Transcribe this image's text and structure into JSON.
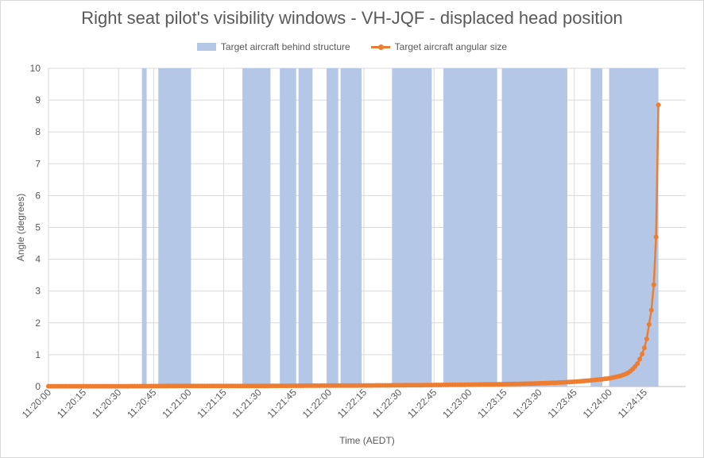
{
  "chart_data": {
    "type": "line",
    "title": "Right seat pilot's visibility windows - VH-JQF - displaced head position",
    "xlabel": "Time (AEDT)",
    "ylabel": "Angle (degrees)",
    "ylim": [
      0,
      10
    ],
    "y_ticks": [
      "0",
      "1",
      "2",
      "3",
      "4",
      "5",
      "6",
      "7",
      "8",
      "9",
      "10"
    ],
    "x_ticks": [
      "11:20:00",
      "11:20:15",
      "11:20:30",
      "11:20:45",
      "11:21:00",
      "11:21:15",
      "11:21:30",
      "11:21:45",
      "11:22:00",
      "11:22:15",
      "11:22:30",
      "11:22:45",
      "11:23:00",
      "11:23:15",
      "11:23:30",
      "11:23:45",
      "11:24:00",
      "11:24:15"
    ],
    "x_range": [
      "11:20:00",
      "11:24:20"
    ],
    "grid": "vertical and horizontal",
    "legend_position": "top",
    "series": [
      {
        "name": "Target aircraft behind structure",
        "kind": "area",
        "color": "#b4c7e7",
        "intervals": [
          [
            "11:20:40",
            "11:20:42"
          ],
          [
            "11:20:47",
            "11:21:01"
          ],
          [
            "11:21:23",
            "11:21:35"
          ],
          [
            "11:21:39",
            "11:21:46"
          ],
          [
            "11:21:47",
            "11:21:53"
          ],
          [
            "11:21:59",
            "11:22:04"
          ],
          [
            "11:22:05",
            "11:22:14"
          ],
          [
            "11:22:27",
            "11:22:44"
          ],
          [
            "11:22:49",
            "11:23:12"
          ],
          [
            "11:23:14",
            "11:23:42"
          ],
          [
            "11:23:52",
            "11:23:57"
          ],
          [
            "11:24:00",
            "11:24:21"
          ]
        ]
      },
      {
        "name": "Target aircraft angular size",
        "kind": "line",
        "color": "#ed7d31",
        "points": [
          [
            "11:20:00",
            0.01
          ],
          [
            "11:20:30",
            0.01
          ],
          [
            "11:21:00",
            0.02
          ],
          [
            "11:21:30",
            0.02
          ],
          [
            "11:22:00",
            0.03
          ],
          [
            "11:22:30",
            0.04
          ],
          [
            "11:23:00",
            0.06
          ],
          [
            "11:23:20",
            0.08
          ],
          [
            "11:23:40",
            0.13
          ],
          [
            "11:23:50",
            0.18
          ],
          [
            "11:24:00",
            0.26
          ],
          [
            "11:24:05",
            0.34
          ],
          [
            "11:24:08",
            0.43
          ],
          [
            "11:24:10",
            0.55
          ],
          [
            "11:24:12",
            0.72
          ],
          [
            "11:24:13",
            0.86
          ],
          [
            "11:24:14",
            1.02
          ],
          [
            "11:24:15",
            1.22
          ],
          [
            "11:24:16",
            1.5
          ],
          [
            "11:24:17",
            1.95
          ],
          [
            "11:24:18",
            2.4
          ],
          [
            "11:24:19",
            3.2
          ],
          [
            "11:24:20",
            4.7
          ],
          [
            "11:24:21",
            8.85
          ]
        ]
      }
    ]
  }
}
